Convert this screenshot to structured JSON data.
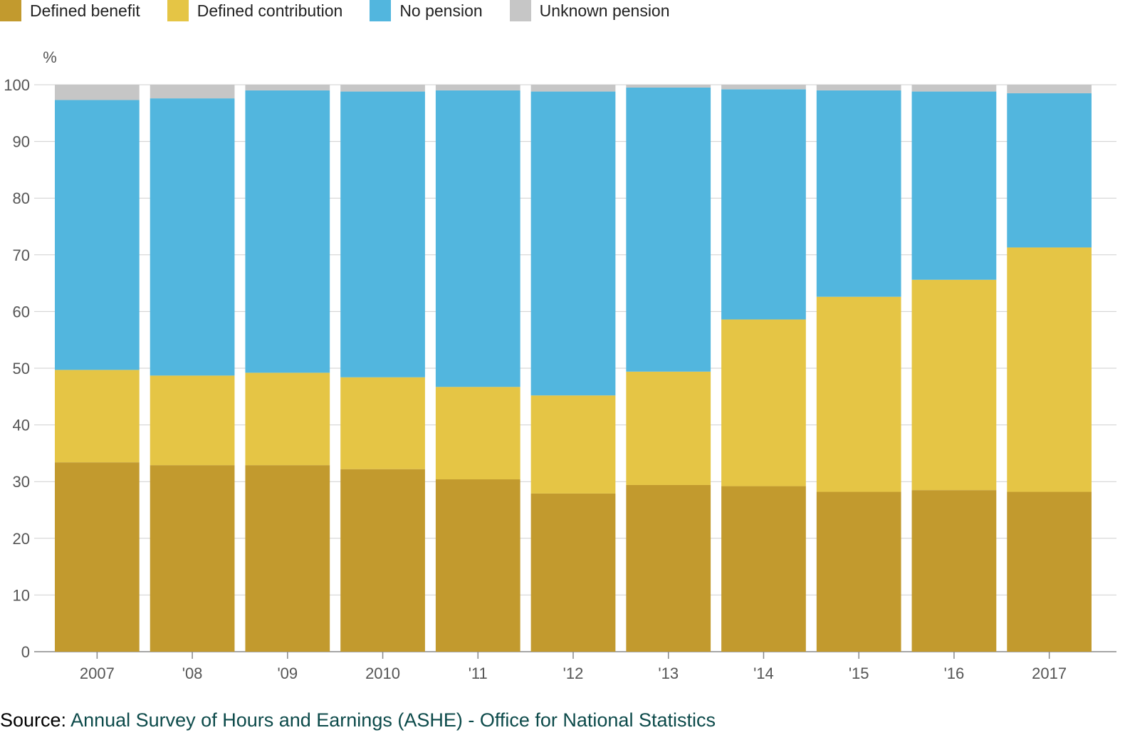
{
  "legend": [
    {
      "label": "Defined benefit",
      "color": "#c29a2e"
    },
    {
      "label": "Defined contribution",
      "color": "#e5c545"
    },
    {
      "label": "No pension",
      "color": "#52b6de"
    },
    {
      "label": "Unknown pension",
      "color": "#c6c6c6"
    }
  ],
  "source": {
    "prefix": "Source:",
    "text": "Annual Survey of Hours and Earnings (ASHE) - Office for National Statistics"
  },
  "chart_data": {
    "type": "bar",
    "stacked": true,
    "unit_label": "%",
    "categories": [
      "2007",
      "'08",
      "'09",
      "2010",
      "'11",
      "'12",
      "'13",
      "'14",
      "'15",
      "'16",
      "2017"
    ],
    "series": [
      {
        "name": "Defined benefit",
        "color": "#c29a2e",
        "values": [
          33.4,
          32.9,
          32.9,
          32.2,
          30.4,
          27.9,
          29.4,
          29.2,
          28.2,
          28.5,
          28.2
        ]
      },
      {
        "name": "Defined contribution",
        "color": "#e5c545",
        "values": [
          16.3,
          15.8,
          16.3,
          16.2,
          16.3,
          17.3,
          20.0,
          29.4,
          34.4,
          37.1,
          43.1
        ]
      },
      {
        "name": "No pension",
        "color": "#52b6de",
        "values": [
          47.6,
          48.9,
          49.8,
          50.4,
          52.3,
          53.6,
          50.1,
          40.6,
          36.4,
          33.2,
          27.2
        ]
      },
      {
        "name": "Unknown pension",
        "color": "#c6c6c6",
        "values": [
          2.7,
          2.4,
          1.0,
          1.2,
          1.0,
          1.2,
          0.5,
          0.8,
          1.0,
          1.2,
          1.5
        ]
      }
    ],
    "ylim": [
      0,
      100
    ],
    "yticks": [
      0,
      10,
      20,
      30,
      40,
      50,
      60,
      70,
      80,
      90,
      100
    ],
    "grid": true,
    "legend_position": "top-left"
  }
}
